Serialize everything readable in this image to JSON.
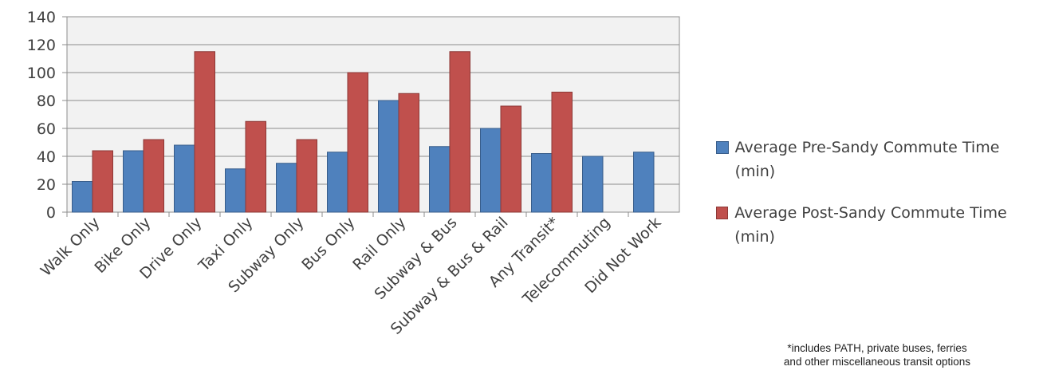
{
  "chart_data": {
    "type": "bar",
    "categories": [
      "Walk Only",
      "Bike Only",
      "Drive Only",
      "Taxi Only",
      "Subway Only",
      "Bus Only",
      "Rail Only",
      "Subway & Bus",
      "Subway & Bus & Rail",
      "Any Transit*",
      "Telecommuting",
      "Did Not Work"
    ],
    "series": [
      {
        "name": "Average Pre-Sandy Commute Time (min)",
        "color": "#4f81bd",
        "stroke": "#385d8a",
        "values": [
          22,
          44,
          48,
          31,
          35,
          43,
          80,
          47,
          60,
          42,
          40,
          43
        ]
      },
      {
        "name": "Average Post-Sandy Commute Time (min)",
        "color": "#c0504d",
        "stroke": "#8c3836",
        "values": [
          44,
          52,
          115,
          65,
          52,
          100,
          85,
          115,
          76,
          86,
          null,
          null
        ]
      }
    ],
    "yticks": [
      0,
      20,
      40,
      60,
      80,
      100,
      120,
      140
    ],
    "ylim": [
      0,
      140
    ],
    "grid": true,
    "plot_background": "#f2f2f2",
    "legend_position": "right"
  },
  "footnote": "*includes PATH,  private buses, ferries\nand other miscellaneous transit options"
}
